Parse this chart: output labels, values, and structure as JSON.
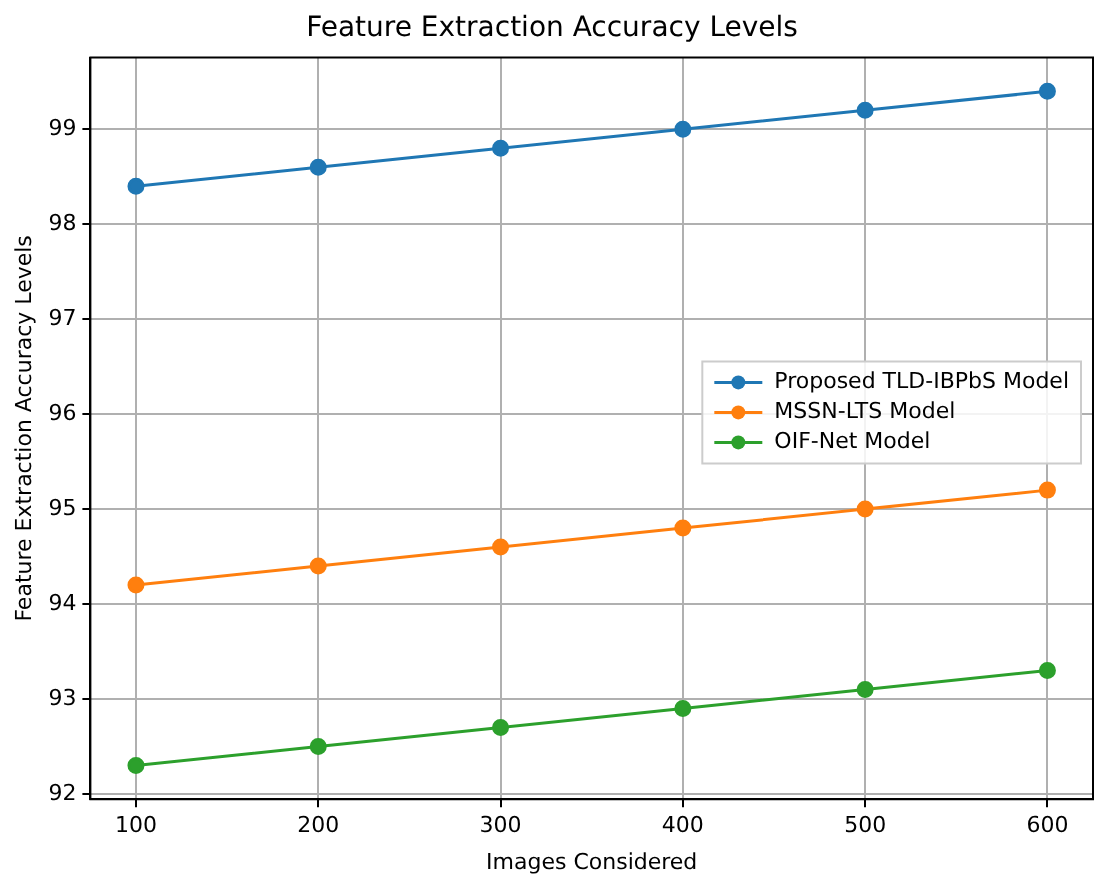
{
  "chart_data": {
    "type": "line",
    "title": "Feature Extraction Accuracy Levels",
    "xlabel": "Images Considered",
    "ylabel": "Feature Extraction Accuracy Levels",
    "x": [
      100,
      200,
      300,
      400,
      500,
      600
    ],
    "series": [
      {
        "name": "Proposed TLD-IBPbS Model",
        "color": "#1f77b4",
        "values": [
          98.4,
          98.6,
          98.8,
          99.0,
          99.2,
          99.4
        ]
      },
      {
        "name": "MSSN-LTS Model",
        "color": "#ff7f0e",
        "values": [
          94.2,
          94.4,
          94.6,
          94.8,
          95.0,
          95.2
        ]
      },
      {
        "name": "OIF-Net Model",
        "color": "#2ca02c",
        "values": [
          92.3,
          92.5,
          92.7,
          92.9,
          93.1,
          93.3
        ]
      }
    ],
    "xlim": [
      75,
      625
    ],
    "xticks": [
      100,
      200,
      300,
      400,
      500,
      600
    ],
    "ylim": [
      91.945,
      99.755
    ],
    "yticks": [
      92,
      93,
      94,
      95,
      96,
      97,
      98,
      99
    ],
    "grid": true,
    "legend": "center right",
    "marker": "circle",
    "line_style": "solid"
  }
}
